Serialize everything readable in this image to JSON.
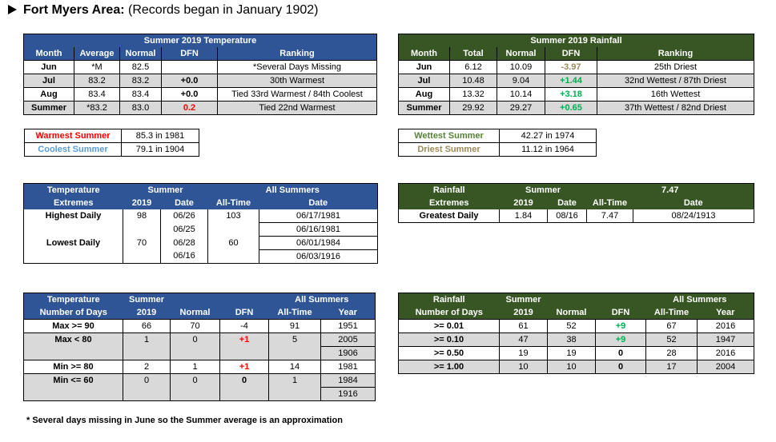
{
  "title": {
    "bold": "Fort Myers Area:",
    "rest": "(Records began in January 1902)"
  },
  "temp_summer": {
    "caption": "Summer 2019 Temperature",
    "headers": [
      "Month",
      "Average",
      "Normal",
      "DFN",
      "Ranking"
    ],
    "rows": [
      {
        "month": "Jun",
        "avg": "*M",
        "normal": "82.5",
        "dfn": "",
        "rank": "*Several Days Missing"
      },
      {
        "month": "Jul",
        "avg": "83.2",
        "normal": "83.2",
        "dfn": "+0.0",
        "rank": "30th Warmest"
      },
      {
        "month": "Aug",
        "avg": "83.4",
        "normal": "83.4",
        "dfn": "+0.0",
        "rank": "Tied 33rd Warmest / 84th Coolest"
      },
      {
        "month": "Summer",
        "avg": "*83.2",
        "normal": "83.0",
        "dfn": "0.2",
        "rank": "Tied 22nd Warmest"
      }
    ]
  },
  "rain_summer": {
    "caption": "Summer 2019 Rainfall",
    "headers": [
      "Month",
      "Total",
      "Normal",
      "DFN",
      "Ranking"
    ],
    "rows": [
      {
        "month": "Jun",
        "total": "6.12",
        "normal": "10.09",
        "dfn": "-3.97",
        "rank": "25th Driest"
      },
      {
        "month": "Jul",
        "total": "10.48",
        "normal": "9.04",
        "dfn": "+1.44",
        "rank": "32nd Wettest / 87th Driest"
      },
      {
        "month": "Aug",
        "total": "13.32",
        "normal": "10.14",
        "dfn": "+3.18",
        "rank": "16th Wettest"
      },
      {
        "month": "Summer",
        "total": "29.92",
        "normal": "29.27",
        "dfn": "+0.65",
        "rank": "37th Wettest / 82nd Driest"
      }
    ]
  },
  "temp_records": {
    "warm_label": "Warmest Summer",
    "warm_value": "85.3 in 1981",
    "cool_label": "Coolest Summer",
    "cool_value": "79.1 in 1904"
  },
  "rain_records": {
    "wet_label": "Wettest Summer",
    "wet_value": "42.27 in 1974",
    "dry_label": "Driest Summer",
    "dry_value": "11.12 in 1964"
  },
  "temp_extremes": {
    "h1": "Temperature",
    "h2": "Extremes",
    "summer": "Summer",
    "all": "All Summers",
    "sub": [
      "2019",
      "Date",
      "All-Time",
      "Date"
    ],
    "high_label": "Highest Daily",
    "high_val": "98",
    "high_d1": "06/26",
    "high_d2": "06/25",
    "high_all": "103",
    "high_ad1": "06/17/1981",
    "high_ad2": "06/16/1981",
    "low_label": "Lowest Daily",
    "low_val": "70",
    "low_d1": "06/28",
    "low_d2": "06/16",
    "low_all": "60",
    "low_ad1": "06/01/1984",
    "low_ad2": "06/03/1916"
  },
  "rain_extremes": {
    "h1": "Rainfall",
    "h2": "Extremes",
    "summer": "Summer",
    "all": "7.47",
    "sub": [
      "2019",
      "Date",
      "All-Time",
      "Date"
    ],
    "label": "Greatest Daily",
    "val": "1.84",
    "date": "08/16",
    "adate": "08/24/1913"
  },
  "temp_days": {
    "h1": "Temperature",
    "h2": "Number of Days",
    "summer1": "Summer",
    "summer2": "2019",
    "normal": "Normal",
    "dfn": "DFN",
    "all": "All Summers",
    "alltime": "All-Time",
    "year": "Year",
    "rows": [
      {
        "label": "Max >= 90",
        "val": "66",
        "normal": "70",
        "dfn": "-4",
        "all": "91",
        "y1": "1951",
        "y2": ""
      },
      {
        "label": "Max < 80",
        "val": "1",
        "normal": "0",
        "dfn": "+1",
        "all": "5",
        "y1": "2005",
        "y2": "1906"
      },
      {
        "label": "Min >= 80",
        "val": "2",
        "normal": "1",
        "dfn": "+1",
        "all": "14",
        "y1": "1981",
        "y2": ""
      },
      {
        "label": "Min <= 60",
        "val": "0",
        "normal": "0",
        "dfn": "0",
        "all": "1",
        "y1": "1984",
        "y2": "1916"
      }
    ]
  },
  "rain_days": {
    "h1": "Rainfall",
    "h2": "Number of Days",
    "summer1": "Summer",
    "summer2": "2019",
    "normal": "Normal",
    "dfn": "DFN",
    "all": "All Summers",
    "alltime": "All-Time",
    "year": "Year",
    "rows": [
      {
        "label": ">= 0.01",
        "val": "61",
        "normal": "52",
        "dfn": "+9",
        "all": "67",
        "year": "2016"
      },
      {
        "label": ">= 0.10",
        "val": "47",
        "normal": "38",
        "dfn": "+9",
        "all": "52",
        "year": "1947"
      },
      {
        "label": ">= 0.50",
        "val": "19",
        "normal": "19",
        "dfn": "0",
        "all": "28",
        "year": "2016"
      },
      {
        "label": ">= 1.00",
        "val": "10",
        "normal": "10",
        "dfn": "0",
        "all": "17",
        "year": "2004"
      }
    ]
  },
  "footnote": "* Several days missing in June so the Summer average is an approximation"
}
